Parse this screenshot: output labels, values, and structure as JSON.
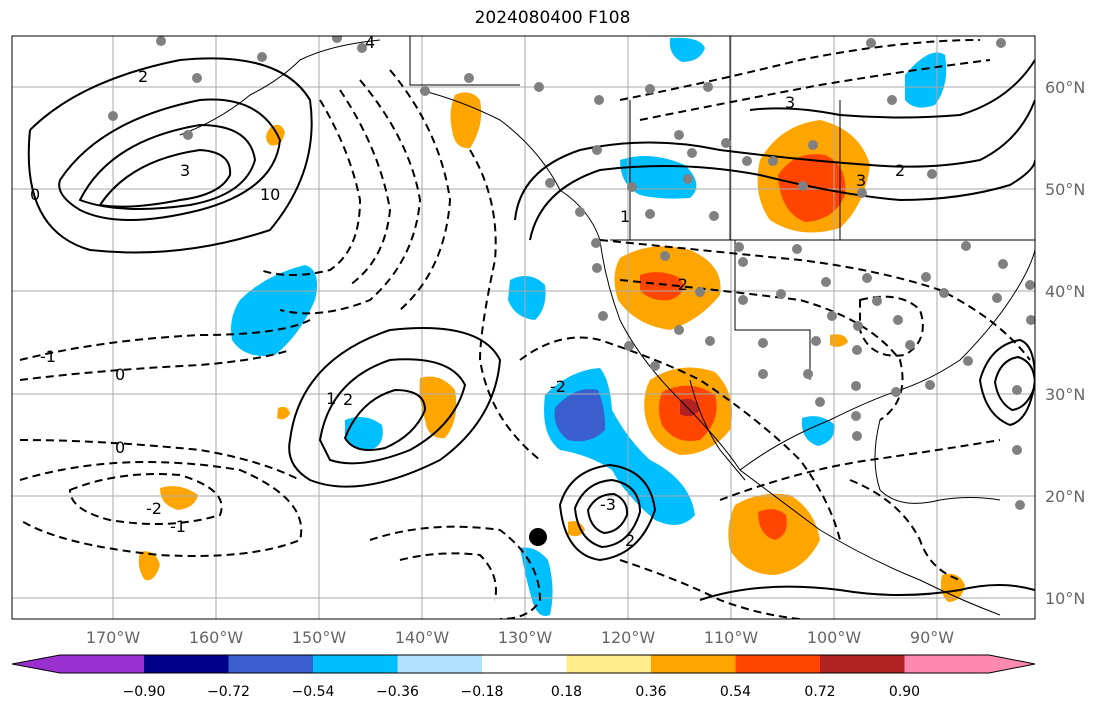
{
  "title": "2024080400 F108",
  "map": {
    "lon_labels": [
      "170°W",
      "160°W",
      "150°W",
      "140°W",
      "130°W",
      "120°W",
      "110°W",
      "100°W",
      "90°W"
    ],
    "lat_labels": [
      "60°N",
      "50°N",
      "40°N",
      "30°N",
      "20°N",
      "10°N"
    ],
    "contour_labels": [
      "2",
      "3",
      "4",
      "1",
      "0",
      "-1",
      "-2",
      "-3",
      "10",
      "2",
      "3",
      "0",
      "-2",
      "1",
      "2",
      "3",
      "0",
      "-1",
      "2",
      "-2"
    ]
  },
  "colorbar": {
    "tick_labels": [
      "−0.90",
      "−0.72",
      "−0.54",
      "−0.36",
      "−0.18",
      "0.18",
      "0.36",
      "0.54",
      "0.72",
      "0.90"
    ],
    "colors": [
      "#9b30d0",
      "#00008b",
      "#3a5fcd",
      "#00bfff",
      "#b0e2ff",
      "#ffffff",
      "#ffec8b",
      "#ffa500",
      "#ff4500",
      "#b22222",
      "#ff88b0"
    ]
  },
  "shading_colors": {
    "orange": "#ffa500",
    "red": "#ff4500",
    "darkred": "#b22222",
    "cyan": "#00bfff",
    "blue": "#3a5fcd",
    "station": "#808080"
  }
}
